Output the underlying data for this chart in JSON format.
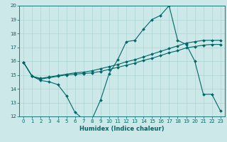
{
  "xlabel": "Humidex (Indice chaleur)",
  "xlim": [
    -0.5,
    23.5
  ],
  "ylim": [
    12,
    20
  ],
  "xticks": [
    0,
    1,
    2,
    3,
    4,
    5,
    6,
    7,
    8,
    9,
    10,
    11,
    12,
    13,
    14,
    15,
    16,
    17,
    18,
    19,
    20,
    21,
    22,
    23
  ],
  "yticks": [
    12,
    13,
    14,
    15,
    16,
    17,
    18,
    19,
    20
  ],
  "background_color": "#cce8e8",
  "grid_color": "#aad4d4",
  "line_color": "#006666",
  "line1_x": [
    0,
    1,
    2,
    3,
    4,
    5,
    6,
    7,
    8,
    9,
    10,
    11,
    12,
    13,
    14,
    15,
    16,
    17,
    18,
    19,
    20,
    21,
    22,
    23
  ],
  "line1_y": [
    15.9,
    14.9,
    14.6,
    14.5,
    14.3,
    13.5,
    12.3,
    11.8,
    11.8,
    13.2,
    15.1,
    16.1,
    17.4,
    17.5,
    18.3,
    19.0,
    19.3,
    20.0,
    17.5,
    17.2,
    16.0,
    13.6,
    13.6,
    12.4
  ],
  "line2_x": [
    0,
    1,
    2,
    3,
    4,
    5,
    6,
    7,
    8,
    9,
    10,
    11,
    12,
    13,
    14,
    15,
    16,
    17,
    18,
    19,
    20,
    21,
    22,
    23
  ],
  "line2_y": [
    15.9,
    14.9,
    14.7,
    14.8,
    14.9,
    15.0,
    15.05,
    15.1,
    15.15,
    15.25,
    15.4,
    15.55,
    15.7,
    15.85,
    16.05,
    16.2,
    16.4,
    16.6,
    16.75,
    16.95,
    17.05,
    17.15,
    17.2,
    17.2
  ],
  "line3_x": [
    0,
    1,
    2,
    3,
    4,
    5,
    6,
    7,
    8,
    9,
    10,
    11,
    12,
    13,
    14,
    15,
    16,
    17,
    18,
    19,
    20,
    21,
    22,
    23
  ],
  "line3_y": [
    15.9,
    14.9,
    14.75,
    14.85,
    14.95,
    15.05,
    15.15,
    15.2,
    15.3,
    15.45,
    15.6,
    15.75,
    15.95,
    16.1,
    16.3,
    16.5,
    16.7,
    16.9,
    17.1,
    17.3,
    17.4,
    17.5,
    17.5,
    17.5
  ]
}
